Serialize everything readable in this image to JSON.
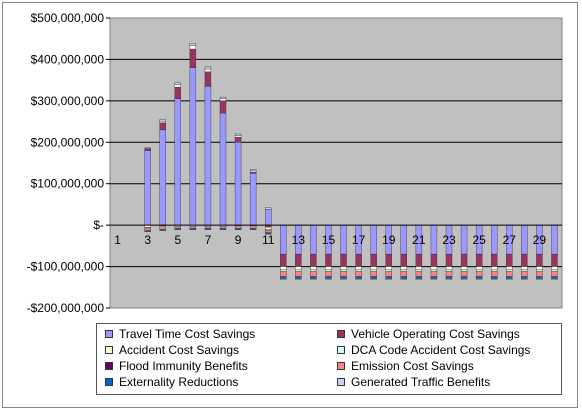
{
  "chart_data": {
    "type": "bar",
    "stacked": true,
    "title": "",
    "xlabel": "",
    "ylabel": "",
    "ylim": [
      -200000000,
      500000000
    ],
    "y_ticks": [
      {
        "value": 500000000,
        "label": "$500,000,000"
      },
      {
        "value": 400000000,
        "label": "$400,000,000"
      },
      {
        "value": 300000000,
        "label": "$300,000,000"
      },
      {
        "value": 200000000,
        "label": "$200,000,000"
      },
      {
        "value": 100000000,
        "label": "$100,000,000"
      },
      {
        "value": 0,
        "label": "$-"
      },
      {
        "value": -100000000,
        "label": "-$100,000,000"
      },
      {
        "value": -200000000,
        "label": "-$200,000,000"
      }
    ],
    "grid": true,
    "plot_background": "#c0c0c0",
    "legend_position": "bottom",
    "categories": [
      "1",
      "2",
      "3",
      "4",
      "5",
      "6",
      "7",
      "8",
      "9",
      "10",
      "11",
      "12",
      "13",
      "14",
      "15",
      "16",
      "17",
      "18",
      "19",
      "20",
      "21",
      "22",
      "23",
      "24",
      "25",
      "26",
      "27",
      "28",
      "29",
      "30"
    ],
    "x_tick_labels": [
      "1",
      "",
      "3",
      "",
      "5",
      "",
      "7",
      "",
      "9",
      "",
      "11",
      "",
      "13",
      "",
      "15",
      "",
      "17",
      "",
      "19",
      "",
      "21",
      "",
      "23",
      "",
      "25",
      "",
      "27",
      "",
      "29",
      ""
    ],
    "series": [
      {
        "name": "Travel Time Cost Savings",
        "color": "#9999ff",
        "values": [
          0,
          0,
          180000000,
          230000000,
          305000000,
          380000000,
          335000000,
          270000000,
          200000000,
          125000000,
          38000000,
          -70000000,
          -70000000,
          -70000000,
          -70000000,
          -70000000,
          -70000000,
          -70000000,
          -70000000,
          -70000000,
          -70000000,
          -70000000,
          -70000000,
          -70000000,
          -70000000,
          -70000000,
          -70000000,
          -70000000,
          -70000000,
          -70000000
        ]
      },
      {
        "name": "Vehicle Operating Cost Savings",
        "color": "#993366",
        "values": [
          0,
          0,
          5000000,
          17000000,
          28000000,
          45000000,
          35000000,
          30000000,
          12000000,
          3000000,
          -5000000,
          -30000000,
          -30000000,
          -30000000,
          -30000000,
          -30000000,
          -30000000,
          -30000000,
          -30000000,
          -30000000,
          -30000000,
          -30000000,
          -30000000,
          -30000000,
          -30000000,
          -30000000,
          -30000000,
          -30000000,
          -30000000,
          -30000000
        ]
      },
      {
        "name": "Accident Cost Savings",
        "color": "#ffffcc",
        "values": [
          0,
          0,
          -5000000,
          4000000,
          6000000,
          8000000,
          7000000,
          5000000,
          4000000,
          3000000,
          -5000000,
          -8000000,
          -8000000,
          -8000000,
          -8000000,
          -8000000,
          -8000000,
          -8000000,
          -8000000,
          -8000000,
          -8000000,
          -8000000,
          -8000000,
          -8000000,
          -8000000,
          -8000000,
          -8000000,
          -8000000,
          -8000000,
          -8000000
        ]
      },
      {
        "name": "DCA Code Accident Cost Savings",
        "color": "#ccffff",
        "values": [
          0,
          0,
          -2000000,
          -2000000,
          -3000000,
          -3000000,
          -3000000,
          -3000000,
          -2000000,
          -2000000,
          -2000000,
          -4000000,
          -4000000,
          -4000000,
          -4000000,
          -4000000,
          -4000000,
          -4000000,
          -4000000,
          -4000000,
          -4000000,
          -4000000,
          -4000000,
          -4000000,
          -4000000,
          -4000000,
          -4000000,
          -4000000,
          -4000000,
          -4000000
        ]
      },
      {
        "name": "Flood Immunity Benefits",
        "color": "#660066",
        "values": [
          0,
          0,
          0,
          0,
          0,
          0,
          0,
          0,
          0,
          0,
          0,
          0,
          0,
          0,
          0,
          0,
          0,
          0,
          0,
          0,
          0,
          0,
          0,
          0,
          0,
          0,
          0,
          0,
          0,
          0
        ]
      },
      {
        "name": "Emission Cost Savings",
        "color": "#ff8080",
        "values": [
          0,
          0,
          -6000000,
          -8000000,
          -5000000,
          -5000000,
          -5000000,
          -5000000,
          -6000000,
          -6000000,
          -6000000,
          -12000000,
          -12000000,
          -12000000,
          -12000000,
          -12000000,
          -12000000,
          -12000000,
          -12000000,
          -12000000,
          -12000000,
          -12000000,
          -12000000,
          -12000000,
          -12000000,
          -12000000,
          -12000000,
          -12000000,
          -12000000,
          -12000000
        ]
      },
      {
        "name": "Externality Reductions",
        "color": "#0066cc",
        "values": [
          0,
          0,
          -3000000,
          -3000000,
          -3000000,
          -3000000,
          -3000000,
          -3000000,
          -3000000,
          -3000000,
          -4000000,
          -5000000,
          -5000000,
          -5000000,
          -5000000,
          -5000000,
          -5000000,
          -5000000,
          -5000000,
          -5000000,
          -5000000,
          -5000000,
          -5000000,
          -5000000,
          -5000000,
          -5000000,
          -5000000,
          -5000000,
          -5000000,
          -5000000
        ]
      },
      {
        "name": "Generated Traffic Benefits",
        "color": "#ccccff",
        "values": [
          0,
          0,
          2000000,
          4000000,
          5000000,
          6000000,
          5000000,
          4000000,
          4000000,
          3000000,
          4000000,
          -2000000,
          -2000000,
          -2000000,
          -2000000,
          -2000000,
          -2000000,
          -2000000,
          -2000000,
          -2000000,
          -2000000,
          -2000000,
          -2000000,
          -2000000,
          -2000000,
          -2000000,
          -2000000,
          -2000000,
          -2000000,
          -2000000
        ]
      }
    ]
  }
}
